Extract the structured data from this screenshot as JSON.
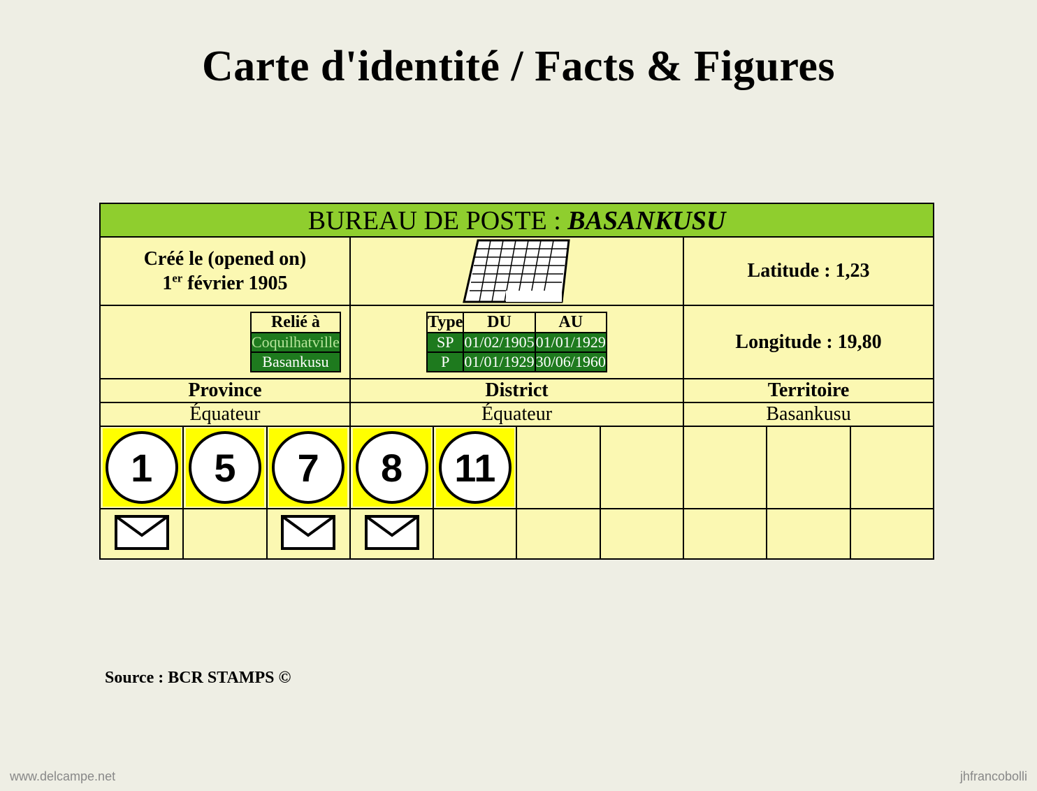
{
  "title": "Carte d'identité / Facts & Figures",
  "header": {
    "prefix": "BUREAU DE POSTE : ",
    "name": "BASANKUSU"
  },
  "created": {
    "label": "Créé le (opened on)",
    "ordinal": "1",
    "suffix": "er",
    "rest": " février 1905"
  },
  "latitude": {
    "label": "Latitude : ",
    "value": "1,23"
  },
  "longitude": {
    "label": "Longitude : ",
    "value": "19,80"
  },
  "relie": {
    "header": "Relié à",
    "rows": [
      {
        "place": "Coquilhatville",
        "alt": true
      },
      {
        "place": "Basankusu",
        "alt": false
      }
    ]
  },
  "periods": {
    "headers": {
      "type": "Type",
      "du": "DU",
      "au": "AU"
    },
    "rows": [
      {
        "type": "SP",
        "du": "01/02/1905",
        "au": "01/01/1929"
      },
      {
        "type": "P",
        "du": "01/01/1929",
        "au": "30/06/1960"
      }
    ]
  },
  "admin": {
    "labels": {
      "province": "Province",
      "district": "District",
      "territoire": "Territoire"
    },
    "values": {
      "province": "Équateur",
      "district": "Équateur",
      "territoire": "Basankusu"
    }
  },
  "circles": [
    "1",
    "5",
    "7",
    "8",
    "11",
    "",
    "",
    "",
    "",
    ""
  ],
  "envelopes": [
    true,
    false,
    true,
    true,
    false,
    false,
    false,
    false,
    false,
    false
  ],
  "source": "Source : BCR STAMPS ©",
  "watermarks": {
    "left": "www.delcampe.net",
    "right": "jhfrancobolli"
  },
  "colors": {
    "page_bg": "#eeeee4",
    "card_bg": "#fbf8b2",
    "header_bg": "#8fce2e",
    "data_bg": "#1e7a1e",
    "circle_bg": "#ffff00",
    "border": "#000000"
  }
}
